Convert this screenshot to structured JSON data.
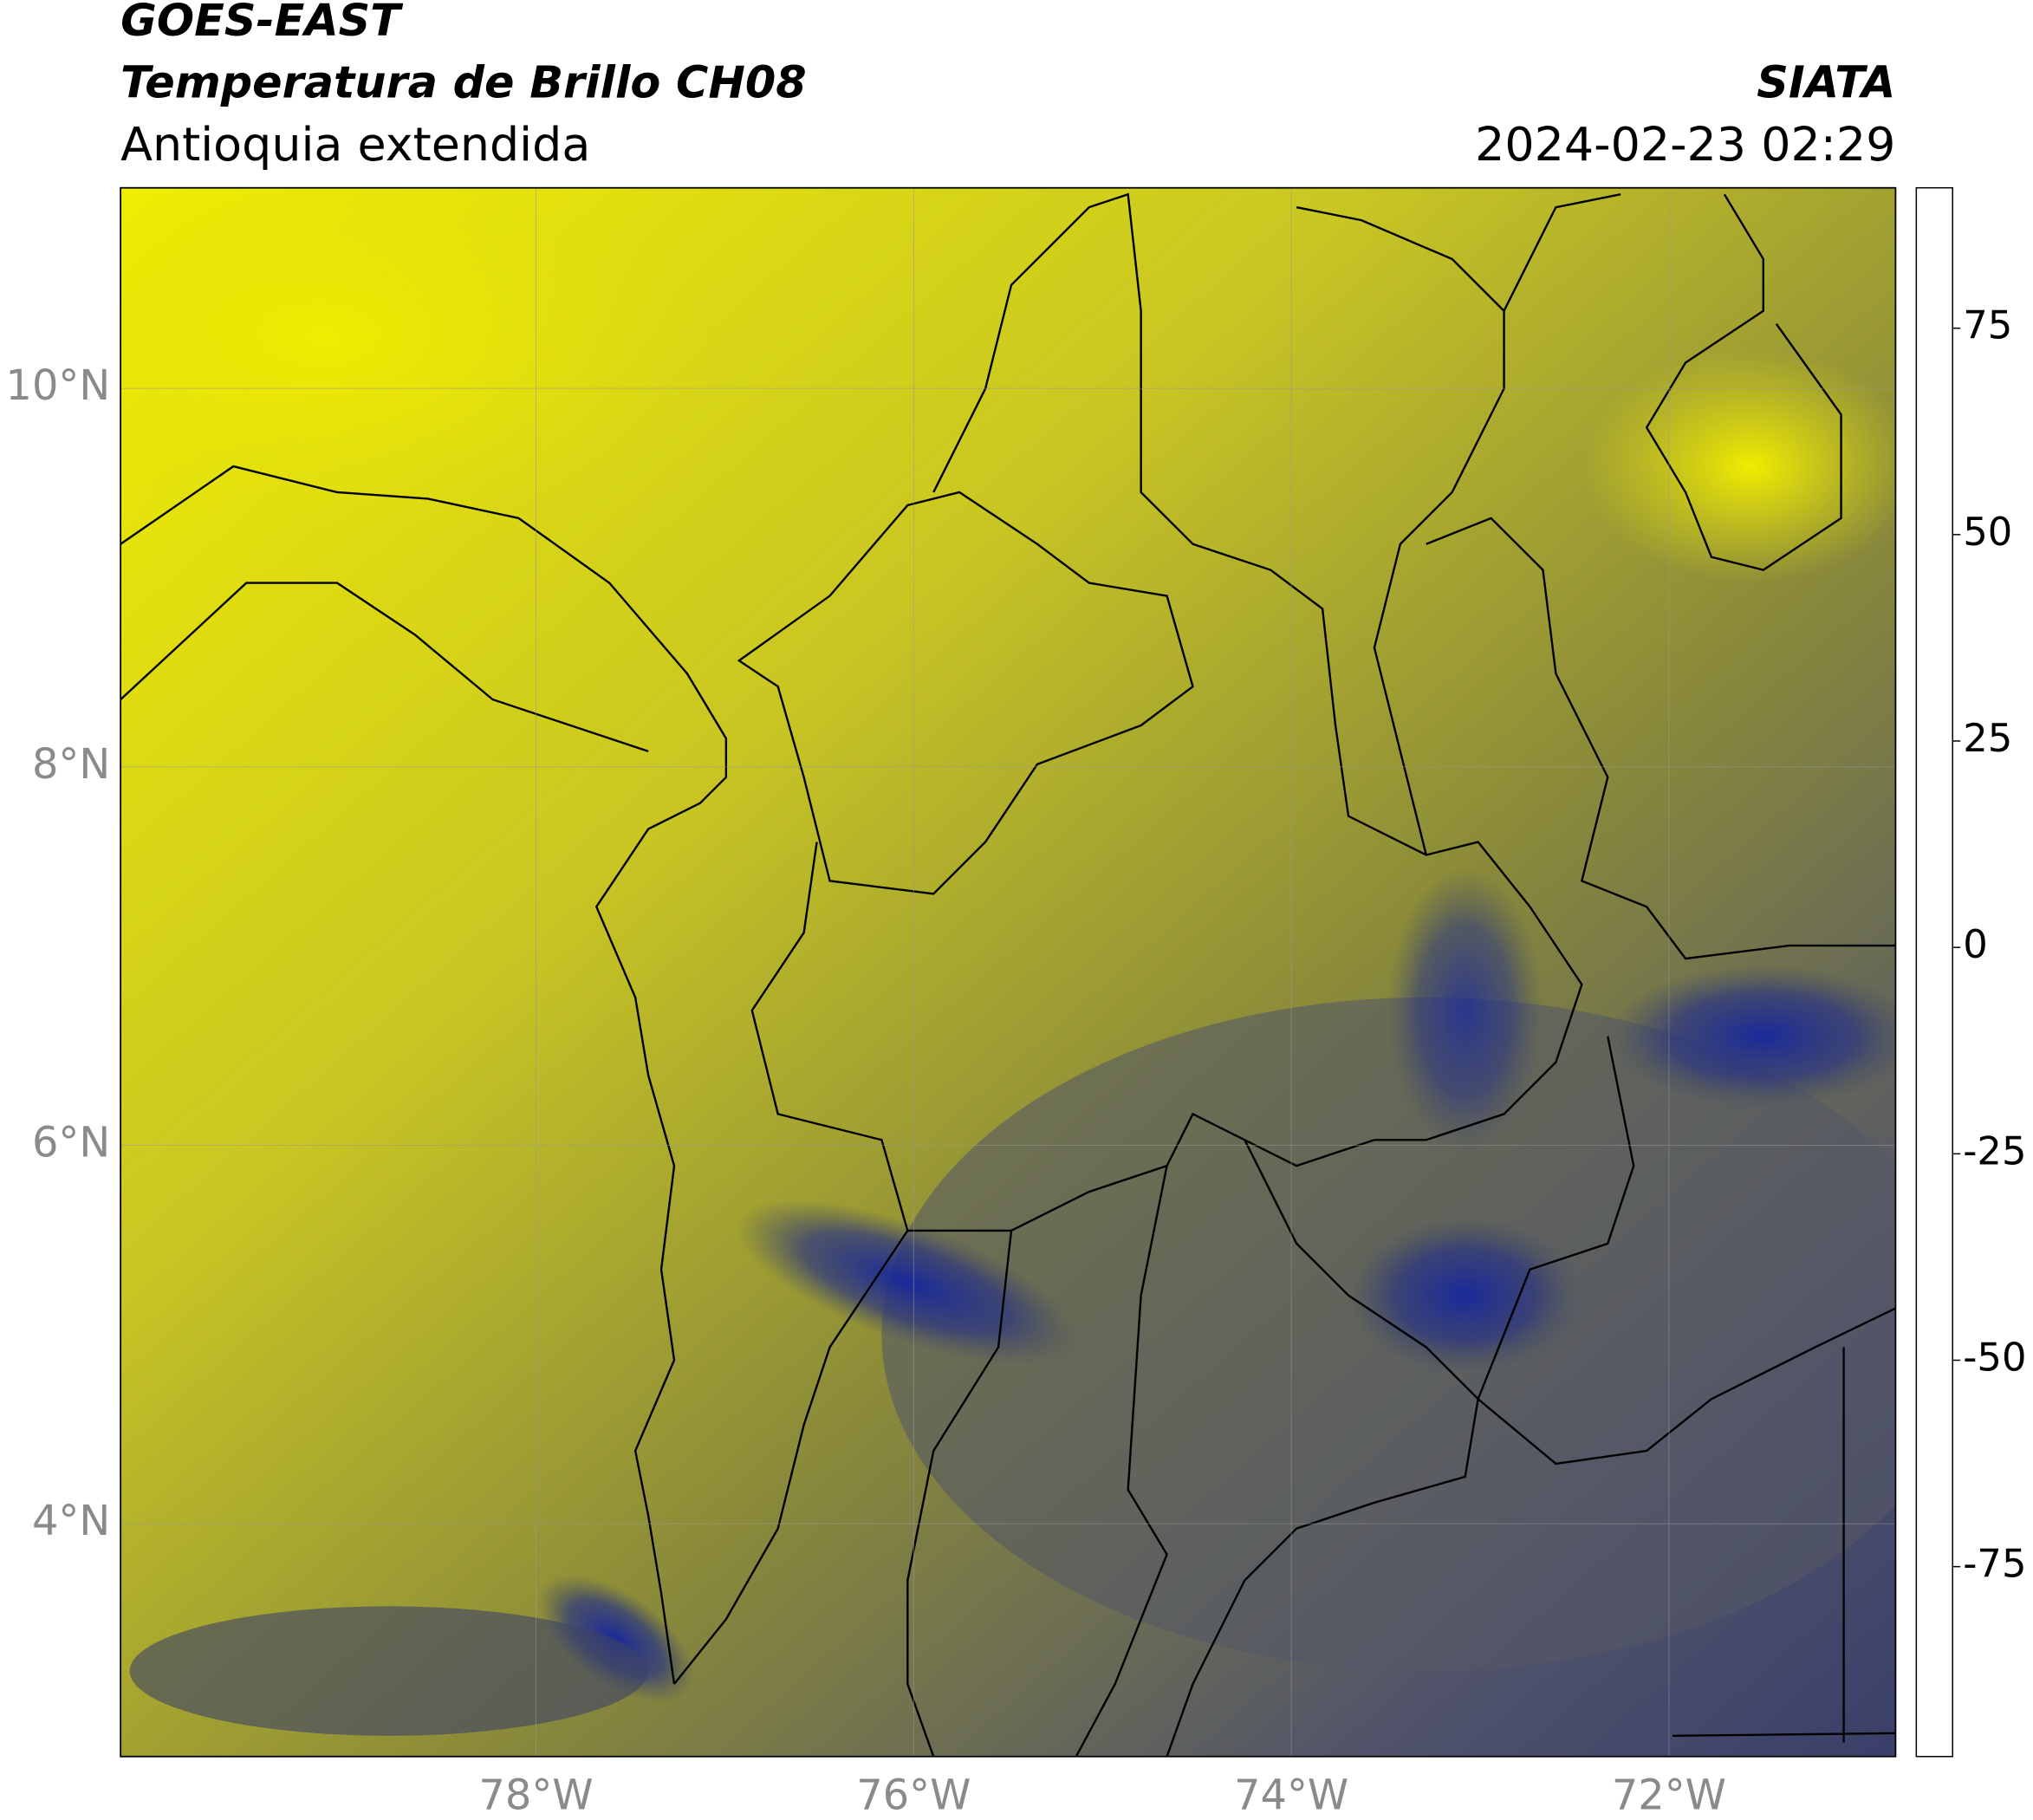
{
  "header": {
    "title_line1": "GOES-EAST",
    "title_line2": "Temperatura de Brillo CH08",
    "subtitle": "Antioquia extendida",
    "source": "SIATA",
    "datetime": "2024-02-23 02:29"
  },
  "map": {
    "xlim": [
      -80.2,
      -70.8
    ],
    "ylim": [
      2.77,
      11.06
    ],
    "xticks": [
      {
        "value": -78,
        "label": "78°W"
      },
      {
        "value": -76,
        "label": "76°W"
      },
      {
        "value": -74,
        "label": "74°W"
      },
      {
        "value": -72,
        "label": "72°W"
      }
    ],
    "yticks": [
      {
        "value": 10,
        "label": "10°N"
      },
      {
        "value": 8,
        "label": "8°N"
      },
      {
        "value": 6,
        "label": "6°N"
      },
      {
        "value": 4,
        "label": "4°N"
      }
    ],
    "grid": true
  },
  "colorbar": {
    "lim": [
      -98,
      92
    ],
    "ticks": [
      75,
      50,
      25,
      0,
      -25,
      -50,
      -75
    ],
    "stops": [
      {
        "value": -98,
        "color": "#ffffff"
      },
      {
        "value": -94,
        "color": "#ffffff"
      },
      {
        "value": -94,
        "color": "#00e8e0"
      },
      {
        "value": -80,
        "color": "#20b090"
      },
      {
        "value": -68,
        "color": "#2e8a30"
      },
      {
        "value": -60,
        "color": "#5a9a50"
      },
      {
        "value": -55,
        "color": "#c0d8c0"
      },
      {
        "value": -50,
        "color": "#ffffff"
      },
      {
        "value": -45,
        "color": "#c8c8e0"
      },
      {
        "value": -35,
        "color": "#5060a8"
      },
      {
        "value": -28,
        "color": "#000080"
      },
      {
        "value": -25,
        "color": "#404858"
      },
      {
        "value": -18,
        "color": "#909030"
      },
      {
        "value": -12,
        "color": "#f0f000"
      },
      {
        "value": -5,
        "color": "#ffa000"
      },
      {
        "value": 3,
        "color": "#ff6000"
      },
      {
        "value": 8,
        "color": "#ff0000"
      },
      {
        "value": 8,
        "color": "#000000"
      },
      {
        "value": 92,
        "color": "#000000"
      }
    ]
  }
}
